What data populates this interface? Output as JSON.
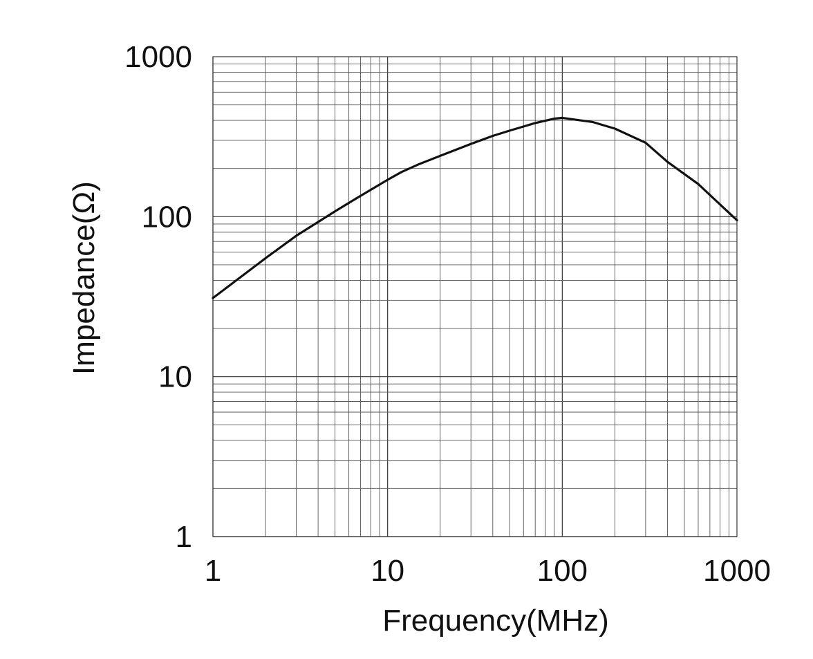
{
  "chart_data": {
    "type": "line",
    "title": "",
    "xlabel": "Frequency(MHz)",
    "ylabel": "Impedance(Ω)",
    "x_scale": "log",
    "y_scale": "log",
    "xlim": [
      1,
      1000
    ],
    "ylim": [
      1,
      1000
    ],
    "x_ticks": [
      {
        "value": 1,
        "label": "1"
      },
      {
        "value": 10,
        "label": "10"
      },
      {
        "value": 100,
        "label": "100"
      },
      {
        "value": 1000,
        "label": "1000"
      }
    ],
    "y_ticks": [
      {
        "value": 1,
        "label": "1"
      },
      {
        "value": 10,
        "label": "10"
      },
      {
        "value": 100,
        "label": "100"
      },
      {
        "value": 1000,
        "label": "1000"
      }
    ],
    "grid": true,
    "legend": "none",
    "series": [
      {
        "color": "#111111",
        "points": [
          {
            "x": 1,
            "y": 31
          },
          {
            "x": 2,
            "y": 55
          },
          {
            "x": 3,
            "y": 76
          },
          {
            "x": 5,
            "y": 108
          },
          {
            "x": 7,
            "y": 135
          },
          {
            "x": 10,
            "y": 170
          },
          {
            "x": 12,
            "y": 190
          },
          {
            "x": 15,
            "y": 212
          },
          {
            "x": 20,
            "y": 240
          },
          {
            "x": 30,
            "y": 285
          },
          {
            "x": 40,
            "y": 320
          },
          {
            "x": 50,
            "y": 345
          },
          {
            "x": 70,
            "y": 385
          },
          {
            "x": 90,
            "y": 410
          },
          {
            "x": 100,
            "y": 415
          },
          {
            "x": 150,
            "y": 390
          },
          {
            "x": 200,
            "y": 355
          },
          {
            "x": 300,
            "y": 290
          },
          {
            "x": 400,
            "y": 220
          },
          {
            "x": 600,
            "y": 160
          },
          {
            "x": 1000,
            "y": 95
          }
        ]
      }
    ]
  }
}
